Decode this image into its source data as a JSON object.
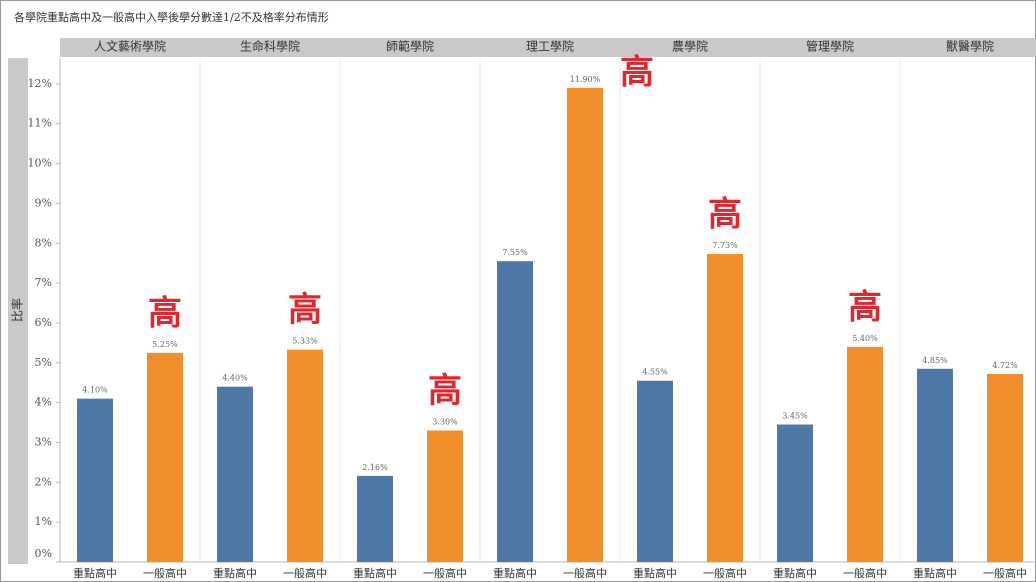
{
  "chart_data": {
    "type": "bar",
    "title": "各學院重點高中及一般高中入學後學分數達1/2不及格率分布情形",
    "y_label": "比率",
    "categories": [
      "重點高中",
      "一般高中"
    ],
    "colors": [
      "#4e79a7",
      "#f28e2b"
    ],
    "groups": [
      {
        "name": "人文藝術學院",
        "values": [
          4.1,
          5.25
        ],
        "value_labels": [
          "4.10%",
          "5.25%"
        ],
        "annotation": "高"
      },
      {
        "name": "生命科學院",
        "values": [
          4.4,
          5.33
        ],
        "value_labels": [
          "4.40%",
          "5.33%"
        ],
        "annotation": "高"
      },
      {
        "name": "師範學院",
        "values": [
          2.16,
          3.3
        ],
        "value_labels": [
          "2.16%",
          "3.30%"
        ],
        "annotation": "高"
      },
      {
        "name": "理工學院",
        "values": [
          7.55,
          11.9
        ],
        "value_labels": [
          "7.55%",
          "11.90%"
        ],
        "annotation": "高"
      },
      {
        "name": "農學院",
        "values": [
          4.55,
          7.73
        ],
        "value_labels": [
          "4.55%",
          "7.73%"
        ],
        "annotation": "高"
      },
      {
        "name": "管理學院",
        "values": [
          3.45,
          5.4
        ],
        "value_labels": [
          "3.45%",
          "5.40%"
        ],
        "annotation": "高"
      },
      {
        "name": "獸醫學院",
        "values": [
          4.85,
          4.72
        ],
        "value_labels": [
          "4.85%",
          "4.72%"
        ],
        "annotation": null
      }
    ],
    "ylim": [
      0,
      12.65
    ],
    "yticks": [
      {
        "value": 0,
        "label": "0%"
      },
      {
        "value": 1,
        "label": "1%"
      },
      {
        "value": 2,
        "label": "2%"
      },
      {
        "value": 3,
        "label": "3%"
      },
      {
        "value": 4,
        "label": "4%"
      },
      {
        "value": 5,
        "label": "5%"
      },
      {
        "value": 6,
        "label": "6%"
      },
      {
        "value": 7,
        "label": "7%"
      },
      {
        "value": 8,
        "label": "8%"
      },
      {
        "value": 9,
        "label": "9%"
      },
      {
        "value": 10,
        "label": "10%"
      },
      {
        "value": 11,
        "label": "11%"
      },
      {
        "value": 12,
        "label": "12%"
      }
    ]
  }
}
